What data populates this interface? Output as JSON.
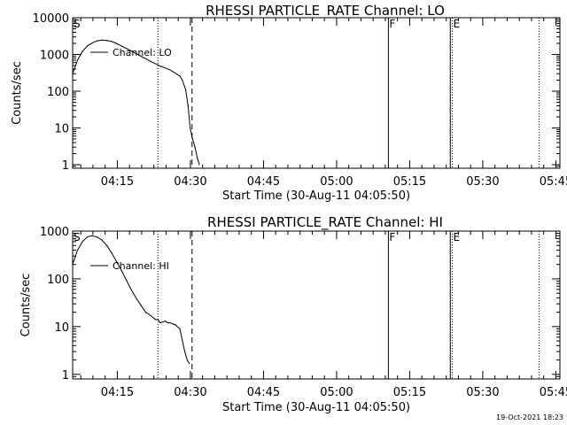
{
  "footer_timestamp": "19-Oct-2021 18:23",
  "chart_data": [
    {
      "type": "line",
      "title": "RHESSI PARTICLE_RATE Channel: LO",
      "xlabel": "Start Time (30-Aug-11 04:05:50)",
      "ylabel": "Counts/sec",
      "y_scale": "log",
      "ylim": [
        0.8,
        10000
      ],
      "x_unit": "minutes after 04:05:50",
      "xlim": [
        0,
        100
      ],
      "x_ticks": [
        {
          "label": "04:15",
          "x": 9.17
        },
        {
          "label": "04:30",
          "x": 24.17
        },
        {
          "label": "04:45",
          "x": 39.17
        },
        {
          "label": "05:00",
          "x": 54.17
        },
        {
          "label": "05:15",
          "x": 69.17
        },
        {
          "label": "05:30",
          "x": 84.17
        },
        {
          "label": "05:45",
          "x": 99.17
        }
      ],
      "y_ticks": [
        {
          "label": "1",
          "y": 1
        },
        {
          "label": "10",
          "y": 10
        },
        {
          "label": "100",
          "y": 100
        },
        {
          "label": "1000",
          "y": 1000
        },
        {
          "label": "10000",
          "y": 10000
        }
      ],
      "legend_position": "top-left",
      "series": [
        {
          "name": "Channel: LO",
          "x": [
            0,
            1,
            2,
            3,
            4,
            5,
            6,
            7,
            8,
            9,
            10,
            12,
            14,
            16,
            18,
            20,
            22,
            22.5,
            23.2,
            23.7,
            24.1,
            24.6,
            25.1,
            25.6,
            26.0
          ],
          "y": [
            300,
            700,
            1200,
            1700,
            2050,
            2350,
            2450,
            2400,
            2250,
            2000,
            1700,
            1250,
            900,
            650,
            480,
            380,
            260,
            200,
            110,
            40,
            10,
            5,
            3,
            1.5,
            1
          ]
        }
      ],
      "vertical_markers": [
        {
          "x": 17.5,
          "style": "dotted",
          "label": ""
        },
        {
          "x": 24.5,
          "style": "dashed",
          "label": ""
        },
        {
          "x": 64.8,
          "style": "solid",
          "label": "F"
        },
        {
          "x": 77.5,
          "style": "solid",
          "label": ""
        },
        {
          "x": 77.9,
          "style": "dotted",
          "label": "E"
        },
        {
          "x": 95.7,
          "style": "dotted",
          "label": ""
        }
      ],
      "corner_label": "S"
    },
    {
      "type": "line",
      "title": "RHESSI PARTICLE_RATE Channel: HI",
      "xlabel": "Start Time (30-Aug-11 04:05:50)",
      "ylabel": "Counts/sec",
      "y_scale": "log",
      "ylim": [
        0.8,
        1000
      ],
      "x_unit": "minutes after 04:05:50",
      "xlim": [
        0,
        100
      ],
      "x_ticks": [
        {
          "label": "04:15",
          "x": 9.17
        },
        {
          "label": "04:30",
          "x": 24.17
        },
        {
          "label": "04:45",
          "x": 39.17
        },
        {
          "label": "05:00",
          "x": 54.17
        },
        {
          "label": "05:15",
          "x": 69.17
        },
        {
          "label": "05:30",
          "x": 84.17
        },
        {
          "label": "05:45",
          "x": 99.17
        }
      ],
      "y_ticks": [
        {
          "label": "1",
          "y": 1
        },
        {
          "label": "10",
          "y": 10
        },
        {
          "label": "100",
          "y": 100
        },
        {
          "label": "1000",
          "y": 1000
        }
      ],
      "legend_position": "top-left",
      "series": [
        {
          "name": "Channel: HI",
          "x": [
            0,
            1,
            2,
            3,
            4,
            5,
            6,
            7,
            8,
            9,
            10,
            11,
            12,
            13,
            14,
            15,
            16,
            17,
            17.5,
            18,
            19,
            19.5,
            20,
            21,
            22,
            23,
            23.5,
            23.9
          ],
          "y": [
            200,
            400,
            600,
            750,
            800,
            750,
            650,
            500,
            350,
            230,
            150,
            95,
            60,
            40,
            28,
            20,
            17,
            14,
            14,
            12,
            13,
            12,
            12,
            11,
            9,
            3,
            2,
            1.7
          ]
        }
      ],
      "vertical_markers": [
        {
          "x": 17.5,
          "style": "dotted",
          "label": ""
        },
        {
          "x": 24.5,
          "style": "dashed",
          "label": ""
        },
        {
          "x": 64.8,
          "style": "solid",
          "label": "F"
        },
        {
          "x": 77.5,
          "style": "solid",
          "label": ""
        },
        {
          "x": 77.9,
          "style": "dotted",
          "label": "E"
        },
        {
          "x": 95.7,
          "style": "dotted",
          "label": ""
        }
      ],
      "corner_label": "S"
    }
  ]
}
